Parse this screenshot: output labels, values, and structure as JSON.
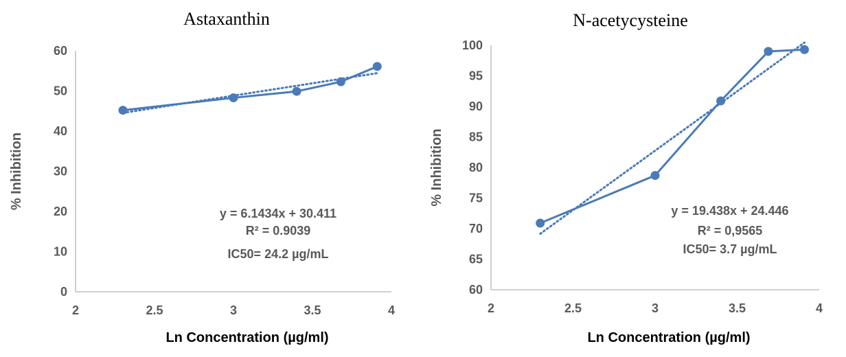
{
  "colors": {
    "series": "#4a7ab8",
    "tick_text": "#595959",
    "axis_line": "#bfbfbf"
  },
  "chart_data": [
    {
      "type": "line",
      "title": "Astaxanthin",
      "xlabel": "Ln Concentration (µg/ml)",
      "ylabel": "% Inhibition",
      "xlim": [
        2,
        4
      ],
      "ylim": [
        0,
        60
      ],
      "xticks": [
        2,
        2.5,
        3,
        3.5,
        4
      ],
      "xtick_labels": [
        "2",
        "2.5",
        "3",
        "3.5",
        "4"
      ],
      "yticks": [
        0,
        10,
        20,
        30,
        40,
        50,
        60
      ],
      "ytick_labels": [
        "0",
        "10",
        "20",
        "30",
        "40",
        "50",
        "60"
      ],
      "series": [
        {
          "name": "Astaxanthin",
          "x": [
            2.3,
            3.0,
            3.4,
            3.68,
            3.91
          ],
          "y": [
            45.2,
            48.3,
            49.9,
            52.3,
            56.1
          ]
        }
      ],
      "trendline": {
        "slope": 6.1434,
        "intercept": 30.411,
        "x_range": [
          2.3,
          3.91
        ]
      },
      "annotations": [
        "y = 6.1434x + 30.411",
        "R² = 0.9039",
        "IC50= 24.2  µg/mL"
      ]
    },
    {
      "type": "line",
      "title": "N-acetycysteine",
      "xlabel": "Ln Concentration (µg/ml)",
      "ylabel": "% Inhibition",
      "xlim": [
        2,
        4
      ],
      "ylim": [
        60,
        100
      ],
      "xticks": [
        2,
        2.5,
        3,
        3.5,
        4
      ],
      "xtick_labels": [
        "2",
        "2.5",
        "3",
        "3.5",
        "4"
      ],
      "yticks": [
        60,
        65,
        70,
        75,
        80,
        85,
        90,
        95,
        100
      ],
      "ytick_labels": [
        "60",
        "65",
        "70",
        "75",
        "80",
        "85",
        "90",
        "95",
        "100"
      ],
      "series": [
        {
          "name": "N-acetycysteine",
          "x": [
            2.3,
            3.0,
            3.4,
            3.69,
            3.91
          ],
          "y": [
            70.9,
            78.7,
            90.9,
            99.0,
            99.3
          ]
        }
      ],
      "trendline": {
        "slope": 19.438,
        "intercept": 24.446,
        "x_range": [
          2.3,
          3.91
        ]
      },
      "annotations": [
        "y = 19.438x + 24.446",
        "R² = 0,9565",
        "IC50= 3.7 µg/mL"
      ]
    }
  ]
}
